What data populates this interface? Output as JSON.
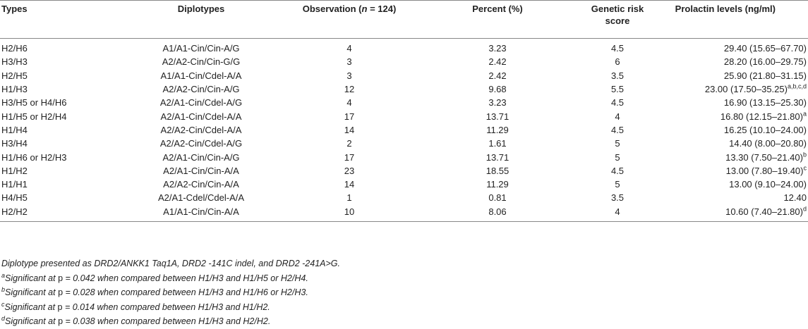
{
  "table": {
    "header": {
      "types": "Types",
      "diplotypes": "Diplotypes",
      "observation": {
        "pre": "Observation (",
        "italic": "n",
        "post": " = 124)"
      },
      "percent": "Percent (%)",
      "score": "Genetic risk score",
      "prolactin": "Prolactin levels (ng/ml)"
    },
    "rows": [
      {
        "type": "H2/H6",
        "diplotype": "A1/A1-Cin/Cin-A/G",
        "observation": 4,
        "percent": 3.23,
        "score": 4.5,
        "prolactin": "29.40 (15.65–67.70)"
      },
      {
        "type": "H3/H3",
        "diplotype": "A2/A2-Cin/Cin-G/G",
        "observation": 3,
        "percent": 2.42,
        "score": 6,
        "prolactin": "28.20 (16.00–29.75)"
      },
      {
        "type": "H2/H5",
        "diplotype": "A1/A1-Cin/Cdel-A/A",
        "observation": 3,
        "percent": 2.42,
        "score": 3.5,
        "prolactin": "25.90 (21.80–31.15)"
      },
      {
        "type": "H1/H3",
        "diplotype": "A2/A2-Cin/Cin-A/G",
        "observation": 12,
        "percent": 9.68,
        "score": 5.5,
        "prolactin": "23.00 (17.50–35.25)",
        "sup": "a,b,c,d"
      },
      {
        "type": "H3/H5 or H4/H6",
        "diplotype": "A2/A1-Cin/Cdel-A/G",
        "observation": 4,
        "percent": 3.23,
        "score": 4.5,
        "prolactin": "16.90 (13.15–25.30)"
      },
      {
        "type": "H1/H5 or H2/H4",
        "diplotype": "A2/A1-Cin/Cdel-A/A",
        "observation": 17,
        "percent": 13.71,
        "score": 4,
        "prolactin": "16.80 (12.15–21.80)",
        "sup": "a"
      },
      {
        "type": "H1/H4",
        "diplotype": "A2/A2-Cin/Cdel-A/A",
        "observation": 14,
        "percent": 11.29,
        "score": 4.5,
        "prolactin": "16.25 (10.10–24.00)"
      },
      {
        "type": "H3/H4",
        "diplotype": "A2/A2-Cin/Cdel-A/G",
        "observation": 2,
        "percent": 1.61,
        "score": 5,
        "prolactin": "14.40 (8.00–20.80)"
      },
      {
        "type": "H1/H6 or H2/H3",
        "diplotype": "A2/A1-Cin/Cin-A/G",
        "observation": 17,
        "percent": 13.71,
        "score": 5,
        "prolactin": "13.30 (7.50–21.40)",
        "sup": "b"
      },
      {
        "type": "H1/H2",
        "diplotype": "A2/A1-Cin/Cin-A/A",
        "observation": 23,
        "percent": 18.55,
        "score": 4.5,
        "prolactin": "13.00 (7.80–19.40)",
        "sup": "c"
      },
      {
        "type": "H1/H1",
        "diplotype": "A2/A2-Cin/Cin-A/A",
        "observation": 14,
        "percent": 11.29,
        "score": 5,
        "prolactin": "13.00 (9.10–24.00)"
      },
      {
        "type": "H4/H5",
        "diplotype": "A2/A1-Cdel/Cdel-A/A",
        "observation": 1,
        "percent": 0.81,
        "score": 3.5,
        "prolactin": "12.40"
      },
      {
        "type": "H2/H2",
        "diplotype": "A1/A1-Cin/Cin-A/A",
        "observation": 10,
        "percent": 8.06,
        "score": 4,
        "prolactin": "10.60 (7.40–21.80)",
        "sup": "d"
      }
    ]
  },
  "footnotes": {
    "intro": "Diplotype presented as DRD2/ANKK1 Taq1A, DRD2 -141C indel, and DRD2 -241A>G.",
    "notes": [
      {
        "mark": "a",
        "pre": "Significant at ",
        "p": "p",
        "post": " = 0.042 when compared between H1/H3 and H1/H5 or H2/H4."
      },
      {
        "mark": "b",
        "pre": "Significant at ",
        "p": "p",
        "post": " = 0.028 when compared between H1/H3 and H1/H6 or H2/H3."
      },
      {
        "mark": "c",
        "pre": "Significant at ",
        "p": "p",
        "post": " = 0.014 when compared between H1/H3 and H1/H2."
      },
      {
        "mark": "d",
        "pre": "Significant at ",
        "p": "p",
        "post": " = 0.038 when compared between H1/H3 and H2/H2."
      }
    ]
  }
}
